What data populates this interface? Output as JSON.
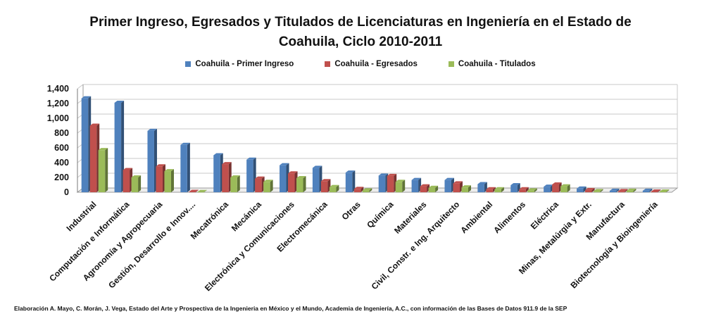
{
  "chart_data": {
    "type": "bar",
    "title_lines": [
      "Primer Ingreso, Egresados y Titulados de Licenciaturas en Ingeniería en el Estado de",
      "Coahuila, Ciclo 2010-2011"
    ],
    "xlabel": "",
    "ylabel": "",
    "ylim": [
      0,
      1400
    ],
    "yticks": [
      "0",
      "200",
      "400",
      "600",
      "800",
      "1,000",
      "1,200",
      "1,400"
    ],
    "grid": true,
    "legend_position": "top-center",
    "categories": [
      "Industrial",
      "Computación e Informática",
      "Agronomía y Agropecuaria",
      "Gestión, Desarrollo e Innov....",
      "Mecatrónica",
      "Mecánica",
      "Electrónica y Comunicaciones",
      "Electromecánica",
      "Otras",
      "Química",
      "Materiales",
      "Civil, Constr. e Ing. Arquitecto",
      "Ambiental",
      "Alimentos",
      "Eléctrica",
      "Minas, Metalúrgia y Extr.",
      "Manufactura",
      "Biotecnología y Bioingeniería"
    ],
    "series": [
      {
        "name": "Coahuila - Primer Ingreso",
        "color": "#4f81bd",
        "values": [
          1270,
          1210,
          830,
          640,
          500,
          440,
          365,
          330,
          265,
          225,
          165,
          165,
          110,
          95,
          75,
          50,
          20,
          20
        ]
      },
      {
        "name": "Coahuila - Egresados",
        "color": "#c0504d",
        "values": [
          900,
          300,
          350,
          5,
          380,
          185,
          255,
          150,
          45,
          220,
          80,
          120,
          40,
          40,
          105,
          30,
          15,
          10
        ]
      },
      {
        "name": "Coahuila - Titulados",
        "color": "#9bbb59",
        "values": [
          570,
          200,
          285,
          2,
          200,
          140,
          190,
          70,
          25,
          140,
          60,
          65,
          40,
          25,
          80,
          15,
          20,
          10
        ]
      }
    ]
  },
  "source_note": "Elaboración A. Mayo, C. Morán, J. Vega, Estado del Arte y Prospectiva de la Ingenieria en México y el Mundo, Academia de Ingeniería, A.C., con información de las Bases de Datos  911.9  de la SEP"
}
